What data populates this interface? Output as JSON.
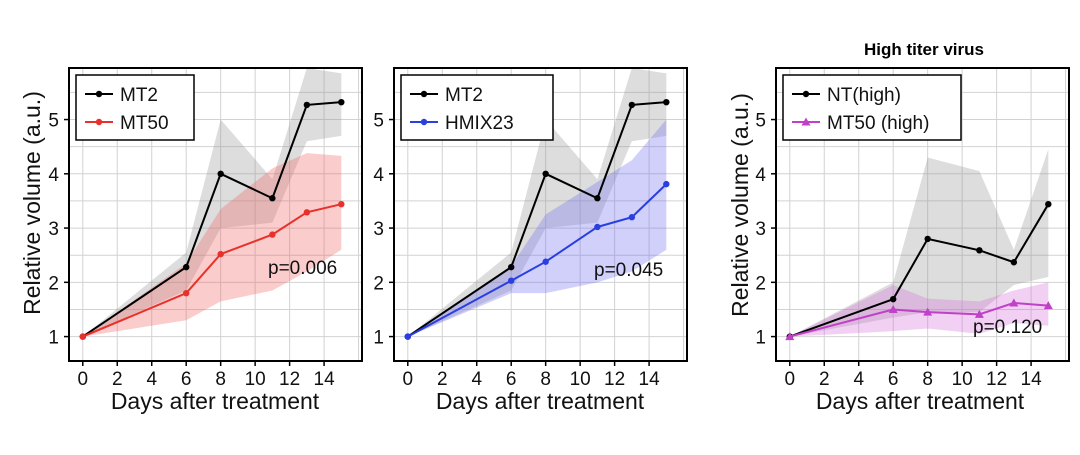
{
  "chart_data": [
    {
      "type": "line",
      "title": "",
      "xlabel": "Days after treatment",
      "ylabel": "Relative volume (a.u.)",
      "xlim": [
        -0.8,
        16.2
      ],
      "ylim": [
        0.55,
        5.95
      ],
      "xticks": [
        0,
        2,
        4,
        6,
        8,
        10,
        12,
        14
      ],
      "yticks": [
        1,
        2,
        3,
        4,
        5
      ],
      "grid": true,
      "legend_position": "top-left",
      "annotation": "p=0.006",
      "series": [
        {
          "name": "MT2",
          "color": "#000000",
          "marker": "circle",
          "x": [
            0,
            6,
            8,
            11,
            13,
            15
          ],
          "values": [
            1.0,
            2.28,
            4.0,
            3.55,
            5.27,
            5.32
          ],
          "band_upper": [
            1.0,
            2.55,
            5.0,
            3.9,
            5.95,
            5.85
          ],
          "band_lower": [
            1.0,
            1.85,
            3.0,
            3.1,
            4.6,
            4.7
          ]
        },
        {
          "name": "MT50",
          "color": "#e8312a",
          "marker": "circle",
          "x": [
            0,
            6,
            8,
            11,
            13,
            15
          ],
          "values": [
            1.0,
            1.8,
            2.52,
            2.88,
            3.29,
            3.44
          ],
          "band_upper": [
            1.0,
            2.35,
            3.35,
            4.1,
            4.38,
            4.33
          ],
          "band_lower": [
            1.0,
            1.3,
            1.65,
            1.85,
            2.2,
            2.6
          ]
        }
      ]
    },
    {
      "type": "line",
      "title": "",
      "xlabel": "Days after treatment",
      "ylabel": "",
      "xlim": [
        -0.8,
        16.2
      ],
      "ylim": [
        0.55,
        5.95
      ],
      "xticks": [
        0,
        2,
        4,
        6,
        8,
        10,
        12,
        14
      ],
      "yticks": [
        1,
        2,
        3,
        4,
        5
      ],
      "grid": true,
      "legend_position": "top-left",
      "annotation": "p=0.045",
      "series": [
        {
          "name": "MT2",
          "color": "#000000",
          "marker": "circle",
          "x": [
            0,
            6,
            8,
            11,
            13,
            15
          ],
          "values": [
            1.0,
            2.28,
            4.0,
            3.55,
            5.27,
            5.32
          ],
          "band_upper": [
            1.0,
            2.55,
            5.0,
            3.9,
            5.95,
            5.85
          ],
          "band_lower": [
            1.0,
            1.85,
            3.0,
            3.1,
            4.6,
            4.7
          ]
        },
        {
          "name": "HMIX23",
          "color": "#2a3fe0",
          "marker": "circle",
          "x": [
            0,
            6,
            8,
            11,
            13,
            15
          ],
          "values": [
            1.0,
            2.03,
            2.38,
            3.02,
            3.2,
            3.81
          ],
          "band_upper": [
            1.0,
            2.3,
            3.25,
            3.85,
            4.25,
            5.0
          ],
          "band_lower": [
            1.0,
            1.8,
            1.8,
            2.0,
            2.2,
            2.6
          ]
        }
      ]
    },
    {
      "type": "line",
      "title": "High titer virus",
      "xlabel": "Days after treatment",
      "ylabel": "Relative volume (a.u.)",
      "xlim": [
        -0.8,
        16.2
      ],
      "ylim": [
        0.55,
        5.95
      ],
      "xticks": [
        0,
        2,
        4,
        6,
        8,
        10,
        12,
        14
      ],
      "yticks": [
        1,
        2,
        3,
        4,
        5
      ],
      "grid": true,
      "legend_position": "top-left",
      "annotation": "p=0.120",
      "series": [
        {
          "name": "NT(high)",
          "color": "#000000",
          "marker": "circle",
          "x": [
            0,
            6,
            8,
            11,
            13,
            15
          ],
          "values": [
            1.0,
            1.69,
            2.8,
            2.59,
            2.37,
            3.44
          ],
          "band_upper": [
            1.0,
            2.0,
            4.3,
            4.05,
            2.6,
            4.45
          ],
          "band_lower": [
            1.0,
            1.35,
            1.45,
            1.45,
            1.95,
            2.1
          ]
        },
        {
          "name": "MT50 (high)",
          "color": "#c040c8",
          "marker": "triangle",
          "x": [
            0,
            6,
            8,
            11,
            13,
            15
          ],
          "values": [
            1.0,
            1.5,
            1.45,
            1.41,
            1.62,
            1.57
          ],
          "band_upper": [
            1.0,
            1.95,
            1.7,
            1.65,
            1.85,
            2.0
          ],
          "band_lower": [
            1.0,
            1.1,
            1.15,
            1.05,
            1.25,
            1.2
          ]
        }
      ]
    }
  ]
}
